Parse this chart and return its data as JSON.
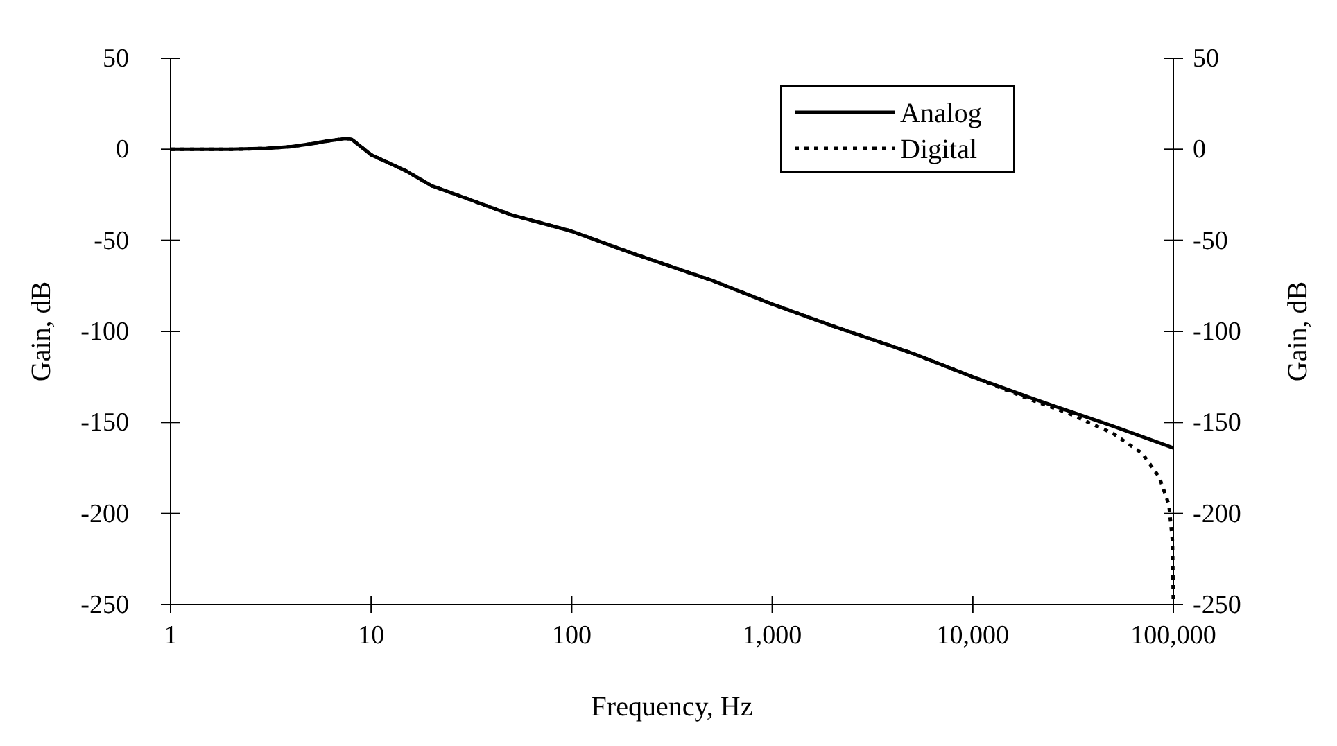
{
  "chart_data": {
    "type": "line",
    "xlabel": "Frequency, Hz",
    "ylabel": "Gain, dB",
    "y2label": "Gain, dB",
    "log": "x",
    "xlim": [
      1,
      100000
    ],
    "xticks": [
      {
        "value": 1,
        "label": "1"
      },
      {
        "value": 10,
        "label": "10"
      },
      {
        "value": 100,
        "label": "100"
      },
      {
        "value": 1000,
        "label": "1,000"
      },
      {
        "value": 10000,
        "label": "10,000"
      },
      {
        "value": 100000,
        "label": "100,000"
      }
    ],
    "ylim": [
      -250,
      50
    ],
    "yticks": [
      -250,
      -200,
      -150,
      -100,
      -50,
      0,
      50
    ],
    "y2lim": [
      -250,
      50
    ],
    "y2ticks": [
      -250,
      -200,
      -150,
      -100,
      -50,
      0,
      50
    ],
    "legend": "top right",
    "grid": false,
    "series": [
      {
        "name": "Analog",
        "color": "#000000",
        "line_style": "solid",
        "x": [
          1,
          2,
          3,
          4,
          5,
          6,
          7,
          7.5,
          8,
          10,
          15,
          20,
          30,
          50,
          100,
          200,
          500,
          1000,
          2000,
          5000,
          10000,
          20000,
          50000,
          100000
        ],
        "values": [
          0,
          0,
          0.5,
          1.5,
          3,
          4.5,
          5.5,
          6,
          5.5,
          -3,
          -12,
          -20,
          -27,
          -36,
          -45,
          -57,
          -72,
          -85,
          -97,
          -112,
          -125,
          -137,
          -152,
          -164
        ]
      },
      {
        "name": "Digital",
        "color": "#000000",
        "line_style": "dotted",
        "x": [
          1,
          2,
          3,
          4,
          5,
          6,
          7,
          7.5,
          8,
          10,
          15,
          20,
          30,
          50,
          100,
          200,
          500,
          1000,
          2000,
          5000,
          10000,
          20000,
          30000,
          50000,
          70000,
          85000,
          95000,
          99000,
          100000
        ],
        "values": [
          0,
          0,
          0.5,
          1.5,
          3,
          4.5,
          5.5,
          6,
          5.5,
          -3,
          -12,
          -20,
          -27,
          -36,
          -45,
          -57,
          -72,
          -85,
          -97,
          -112,
          -125,
          -138,
          -145,
          -156,
          -167,
          -180,
          -195,
          -215,
          -250
        ]
      }
    ]
  }
}
